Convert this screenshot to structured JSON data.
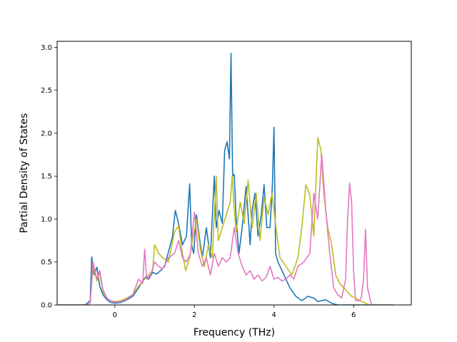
{
  "chart_data": {
    "type": "line",
    "xlabel": "Frequency (THz)",
    "ylabel": "Partial Density of States",
    "xlim": [
      -1.45,
      7.45
    ],
    "ylim": [
      0,
      3.07
    ],
    "xticks": [
      0,
      2,
      4,
      6
    ],
    "yticks": [
      0.0,
      0.5,
      1.0,
      1.5,
      2.0,
      2.5,
      3.0
    ],
    "ytick_labels": [
      "0.0",
      "0.5",
      "1.0",
      "1.5",
      "2.0",
      "2.5",
      "3.0"
    ],
    "grid": false,
    "series": [
      {
        "color": "#1f77b4",
        "x": [
          -1.45,
          -0.75,
          -0.62,
          -0.58,
          -0.52,
          -0.45,
          -0.38,
          -0.3,
          -0.2,
          -0.1,
          0.0,
          0.15,
          0.3,
          0.45,
          0.6,
          0.7,
          0.78,
          0.85,
          0.95,
          1.05,
          1.15,
          1.25,
          1.35,
          1.45,
          1.52,
          1.6,
          1.7,
          1.8,
          1.88,
          1.93,
          1.98,
          2.05,
          2.12,
          2.2,
          2.3,
          2.4,
          2.5,
          2.55,
          2.62,
          2.7,
          2.76,
          2.82,
          2.88,
          2.92,
          2.96,
          3.0,
          3.05,
          3.12,
          3.2,
          3.3,
          3.4,
          3.45,
          3.52,
          3.6,
          3.68,
          3.75,
          3.82,
          3.9,
          3.96,
          4.0,
          4.04,
          4.1,
          4.2,
          4.3,
          4.4,
          4.55,
          4.7,
          4.85,
          5.0,
          5.1,
          5.2,
          5.3,
          5.45,
          5.6,
          6.2,
          7.0
        ],
        "y": [
          0,
          0,
          0.05,
          0.56,
          0.35,
          0.44,
          0.22,
          0.12,
          0.06,
          0.03,
          0.02,
          0.03,
          0.06,
          0.1,
          0.2,
          0.28,
          0.33,
          0.3,
          0.38,
          0.36,
          0.4,
          0.45,
          0.62,
          0.8,
          1.1,
          0.95,
          0.7,
          0.8,
          1.41,
          0.7,
          0.6,
          1.05,
          0.8,
          0.55,
          0.9,
          0.55,
          1.5,
          0.9,
          1.1,
          0.95,
          1.8,
          1.9,
          1.7,
          2.93,
          1.5,
          1.52,
          1.0,
          0.6,
          0.9,
          1.38,
          0.7,
          1.1,
          1.3,
          0.8,
          1.05,
          1.4,
          0.9,
          0.9,
          1.4,
          2.07,
          0.6,
          0.5,
          0.4,
          0.3,
          0.2,
          0.1,
          0.05,
          0.1,
          0.08,
          0.04,
          0.05,
          0.06,
          0.02,
          0.0,
          0,
          0
        ]
      },
      {
        "color": "#bcbd22",
        "x": [
          -1.45,
          -0.75,
          -0.62,
          -0.55,
          -0.45,
          -0.38,
          -0.3,
          -0.2,
          -0.1,
          0.0,
          0.15,
          0.3,
          0.45,
          0.6,
          0.75,
          0.85,
          0.95,
          1.0,
          1.1,
          1.2,
          1.35,
          1.5,
          1.6,
          1.7,
          1.78,
          1.88,
          1.95,
          2.05,
          2.15,
          2.25,
          2.35,
          2.45,
          2.55,
          2.6,
          2.7,
          2.8,
          2.9,
          2.95,
          3.0,
          3.05,
          3.15,
          3.25,
          3.35,
          3.45,
          3.55,
          3.65,
          3.75,
          3.85,
          3.95,
          4.05,
          4.15,
          4.3,
          4.45,
          4.6,
          4.7,
          4.8,
          4.9,
          5.0,
          5.1,
          5.18,
          5.25,
          5.35,
          5.45,
          5.55,
          5.65,
          5.75,
          5.85,
          5.95,
          6.05,
          6.15,
          6.3,
          6.4,
          7.0
        ],
        "y": [
          0,
          0,
          0.02,
          0.45,
          0.28,
          0.38,
          0.15,
          0.08,
          0.05,
          0.04,
          0.05,
          0.08,
          0.12,
          0.22,
          0.3,
          0.35,
          0.4,
          0.7,
          0.6,
          0.55,
          0.5,
          0.85,
          0.92,
          0.6,
          0.4,
          0.55,
          0.75,
          1.0,
          0.65,
          0.45,
          0.7,
          0.55,
          1.5,
          0.75,
          0.9,
          1.05,
          1.2,
          1.5,
          1.1,
          0.85,
          1.2,
          0.95,
          1.45,
          0.9,
          1.3,
          0.75,
          1.25,
          1.05,
          1.3,
          0.9,
          0.55,
          0.45,
          0.35,
          0.55,
          0.9,
          1.4,
          1.28,
          0.8,
          1.95,
          1.8,
          1.3,
          0.9,
          0.7,
          0.35,
          0.25,
          0.2,
          0.15,
          0.1,
          0.08,
          0.05,
          0.02,
          0.0,
          0
        ]
      },
      {
        "color": "#e377c2",
        "x": [
          -1.45,
          -0.75,
          -0.62,
          -0.55,
          -0.45,
          -0.38,
          -0.3,
          -0.2,
          -0.1,
          0.0,
          0.15,
          0.3,
          0.45,
          0.6,
          0.7,
          0.75,
          0.8,
          0.9,
          1.0,
          1.1,
          1.2,
          1.35,
          1.5,
          1.6,
          1.7,
          1.8,
          1.9,
          2.0,
          2.1,
          2.2,
          2.3,
          2.4,
          2.5,
          2.6,
          2.7,
          2.8,
          2.9,
          3.0,
          3.1,
          3.2,
          3.3,
          3.4,
          3.5,
          3.6,
          3.7,
          3.8,
          3.9,
          4.0,
          4.1,
          4.2,
          4.3,
          4.4,
          4.5,
          4.6,
          4.75,
          4.9,
          5.0,
          5.1,
          5.2,
          5.3,
          5.4,
          5.5,
          5.6,
          5.7,
          5.8,
          5.85,
          5.9,
          5.95,
          6.0,
          6.05,
          6.15,
          6.2,
          6.25,
          6.3,
          6.35,
          6.45,
          7.0
        ],
        "y": [
          0,
          0,
          0.02,
          0.5,
          0.3,
          0.4,
          0.18,
          0.08,
          0.05,
          0.03,
          0.04,
          0.07,
          0.12,
          0.3,
          0.25,
          0.65,
          0.3,
          0.35,
          0.5,
          0.45,
          0.42,
          0.55,
          0.6,
          0.75,
          0.55,
          0.5,
          0.6,
          1.08,
          0.6,
          0.45,
          0.55,
          0.35,
          0.6,
          0.45,
          0.55,
          0.5,
          0.55,
          0.9,
          0.6,
          0.45,
          0.35,
          0.4,
          0.3,
          0.35,
          0.28,
          0.32,
          0.45,
          0.3,
          0.32,
          0.28,
          0.3,
          0.35,
          0.3,
          0.45,
          0.5,
          0.6,
          1.3,
          1.0,
          1.75,
          1.1,
          0.6,
          0.2,
          0.12,
          0.08,
          0.3,
          1.0,
          1.42,
          1.2,
          0.4,
          0.05,
          0.05,
          0.1,
          0.3,
          0.88,
          0.2,
          0.0,
          0
        ]
      }
    ]
  }
}
